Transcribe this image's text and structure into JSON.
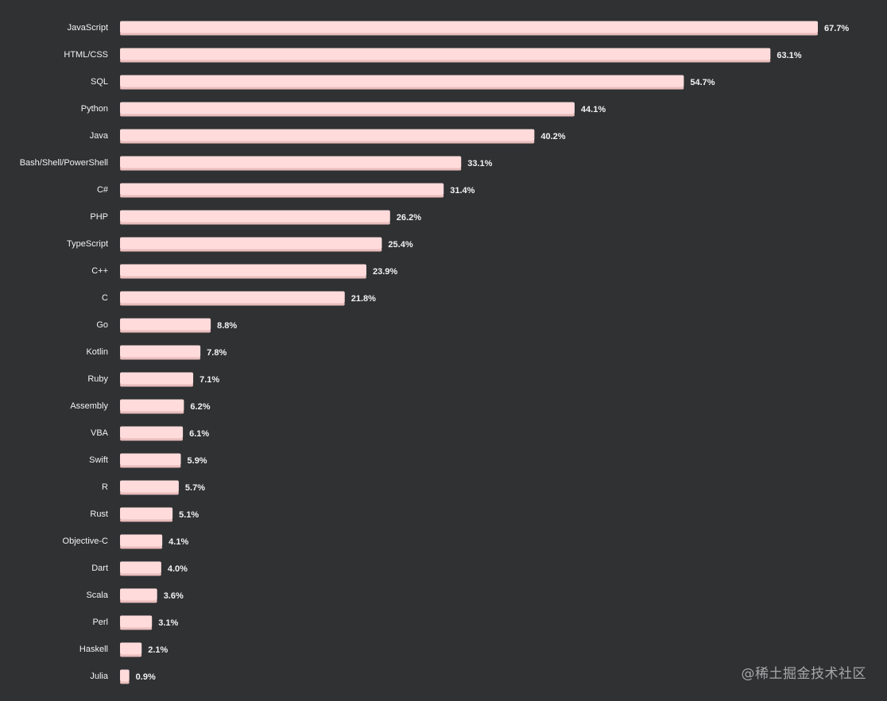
{
  "chart_data": {
    "type": "bar",
    "orientation": "horizontal",
    "categories": [
      "JavaScript",
      "HTML/CSS",
      "SQL",
      "Python",
      "Java",
      "Bash/Shell/PowerShell",
      "C#",
      "PHP",
      "TypeScript",
      "C++",
      "C",
      "Go",
      "Kotlin",
      "Ruby",
      "Assembly",
      "VBA",
      "Swift",
      "R",
      "Rust",
      "Objective-C",
      "Dart",
      "Scala",
      "Perl",
      "Haskell",
      "Julia"
    ],
    "values": [
      67.7,
      63.1,
      54.7,
      44.1,
      40.2,
      33.1,
      31.4,
      26.2,
      25.4,
      23.9,
      21.8,
      8.8,
      7.8,
      7.1,
      6.2,
      6.1,
      5.9,
      5.7,
      5.1,
      4.1,
      4.0,
      3.6,
      3.1,
      2.1,
      0.9
    ],
    "value_labels": [
      "67.7%",
      "63.1%",
      "54.7%",
      "44.1%",
      "40.2%",
      "33.1%",
      "31.4%",
      "26.2%",
      "25.4%",
      "23.9%",
      "21.8%",
      "8.8%",
      "7.8%",
      "7.1%",
      "6.2%",
      "6.1%",
      "5.9%",
      "5.7%",
      "5.1%",
      "4.1%",
      "4.0%",
      "3.6%",
      "3.1%",
      "2.1%",
      "0.9%"
    ],
    "value_unit": "%",
    "xlim": [
      0,
      67.7
    ],
    "title": "",
    "xlabel": "",
    "ylabel": "",
    "grid": false,
    "legend": "none"
  },
  "colors": {
    "background": "#2f3133",
    "bar_fill": "#ffdbdb",
    "bar_shadow": "#e9bcbc",
    "label_text": "#f2f2f2",
    "watermark_text": "#a6a7a9"
  },
  "watermark": {
    "text": "@稀土掘金技术社区"
  }
}
